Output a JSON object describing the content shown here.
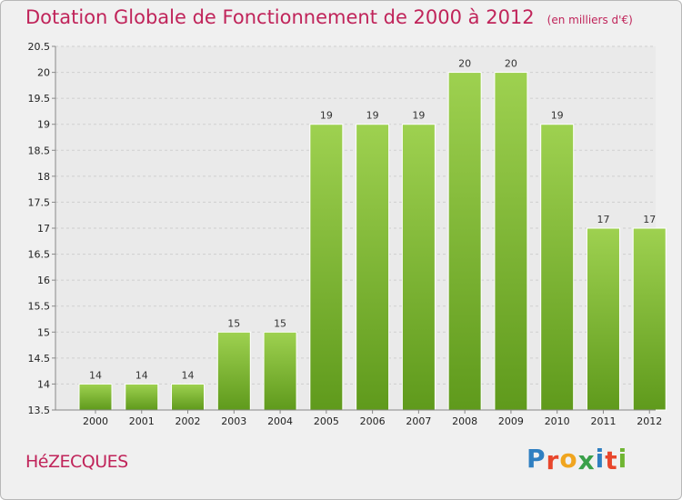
{
  "header": {
    "title": "Dotation Globale de Fonctionnement de 2000 à 2012",
    "unit": "(en milliers d'€)"
  },
  "footer": {
    "commune": "HéZECQUES",
    "logo_letters": [
      "P",
      "r",
      "o",
      "x",
      "i",
      "t",
      "i"
    ],
    "logo_colors": [
      "#2f7fc1",
      "#e8462c",
      "#f0a51f",
      "#3aa04a",
      "#2f7fc1",
      "#e8462c",
      "#6fb532"
    ]
  },
  "chart_data": {
    "type": "bar",
    "categories": [
      "2000",
      "2001",
      "2002",
      "2003",
      "2004",
      "2005",
      "2006",
      "2007",
      "2008",
      "2009",
      "2010",
      "2011",
      "2012"
    ],
    "values": [
      14,
      14,
      14,
      15,
      15,
      19,
      19,
      19,
      20,
      20,
      19,
      17,
      17
    ],
    "labels": [
      "14",
      "14",
      "14",
      "15",
      "15",
      "19",
      "19",
      "19",
      "20",
      "20",
      "19",
      "17",
      "17"
    ],
    "ylim": [
      13.5,
      20.5
    ],
    "yticks": [
      "13.5",
      "14",
      "14.5",
      "15",
      "15.5",
      "16",
      "16.5",
      "17",
      "17.5",
      "18",
      "18.5",
      "19",
      "19.5",
      "20",
      "20.5"
    ],
    "grid": true,
    "bar_color": "#7ab52e"
  }
}
